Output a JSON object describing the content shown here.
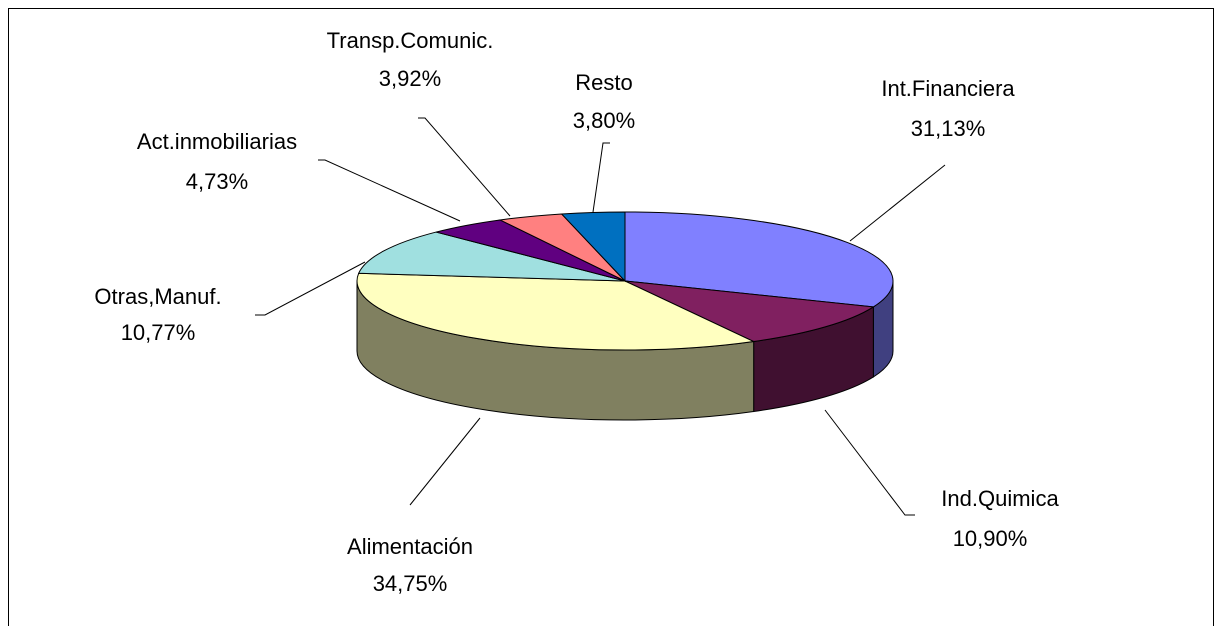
{
  "chart_data": {
    "type": "pie3d",
    "categories": [
      "Int.Financiera",
      "Ind.Quimica",
      "Alimentación",
      "Otras,Manuf.",
      "Act.inmobiliarias",
      "Transp.Comunic.",
      "Resto"
    ],
    "values": [
      31.13,
      10.9,
      34.75,
      10.77,
      4.73,
      3.92,
      3.8
    ],
    "value_labels": [
      "31,13%",
      "10,90%",
      "34,75%",
      "10,77%",
      "4,73%",
      "3,92%",
      "3,80%"
    ],
    "colors": [
      "#8080ff",
      "#802060",
      "#ffffc0",
      "#a0e0e0",
      "#600080",
      "#ff8080",
      "#0070c0"
    ]
  }
}
